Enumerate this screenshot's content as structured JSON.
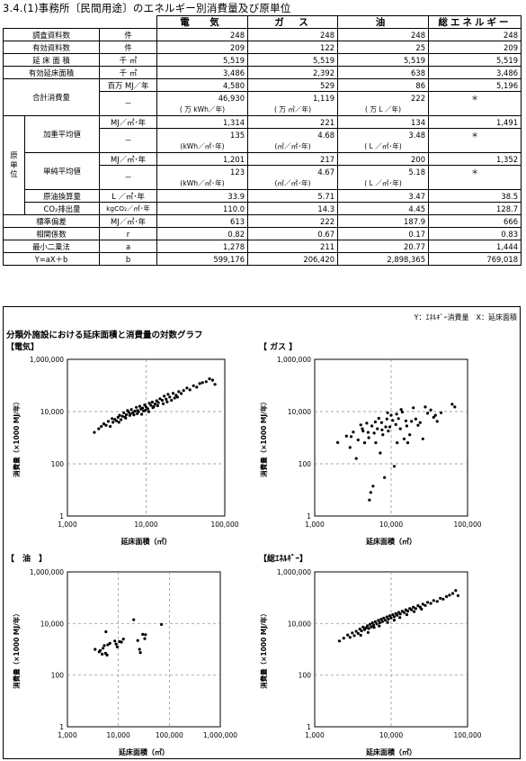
{
  "title": "3.4.(1)事務所〔民間用途〕のエネルギー別消費量及び原単位",
  "table": {
    "headers": [
      "電　気",
      "ガ　ス",
      "油",
      "総エネルギー"
    ],
    "rows": {
      "survey_count": {
        "label": "調査資料数",
        "unit": "件",
        "values": [
          "248",
          "248",
          "248",
          "248"
        ]
      },
      "valid_count": {
        "label": "有効資料数",
        "unit": "件",
        "values": [
          "209",
          "122",
          "25",
          "209"
        ]
      },
      "floor_area": {
        "label": "延 床 面 積",
        "unit": "千 ㎡",
        "values": [
          "5,519",
          "5,519",
          "5,519",
          "5,519"
        ]
      },
      "valid_floor_area": {
        "label": "有効延床面積",
        "unit": "千 ㎡",
        "values": [
          "3,486",
          "2,392",
          "638",
          "3,486"
        ]
      },
      "total_consumption": {
        "label": "合計消費量",
        "unit1": "百万 MJ／年",
        "values1": [
          "4,580",
          "529",
          "86",
          "5,196"
        ],
        "unit2": "－",
        "values2": [
          "46,930",
          "1,119",
          "222",
          "＊"
        ],
        "subs": [
          "( 万 kWh／年)",
          "( 万 ㎥／年)",
          "( 万 L ／年)",
          ""
        ]
      },
      "unit_group_label": "原単位",
      "weighted_avg": {
        "label": "加重平均値",
        "unit1": "MJ／㎡･年",
        "values1": [
          "1,314",
          "221",
          "134",
          "1,491"
        ],
        "unit2": "－",
        "values2": [
          "135",
          "4.68",
          "3.48",
          "＊"
        ],
        "subs": [
          "(kWh／㎡･年)",
          "(㎥／㎡･年)",
          "( L ／㎡･年)",
          ""
        ]
      },
      "simple_avg": {
        "label": "単純平均値",
        "unit1": "MJ／㎡･年",
        "values1": [
          "1,201",
          "217",
          "200",
          "1,352"
        ],
        "unit2": "－",
        "values2": [
          "123",
          "4.67",
          "5.18",
          "＊"
        ],
        "subs": [
          "(kWh／㎡･年)",
          "(㎥／㎡･年)",
          "( L ／㎡･年)",
          ""
        ]
      },
      "crude_oil": {
        "label": "原油換算量",
        "unit": "L ／㎡･年",
        "values": [
          "33.9",
          "5.71",
          "3.47",
          "38.5"
        ]
      },
      "co2": {
        "label": "CO₂排出量",
        "unit": "kgCO₂／㎡･年",
        "values": [
          "110.0",
          "14.3",
          "4.45",
          "128.7"
        ]
      },
      "std_dev": {
        "label": "標準偏差",
        "unit": "MJ／㎡･年",
        "values": [
          "613",
          "222",
          "187.9",
          "666"
        ]
      },
      "correlation": {
        "label": "相関係数",
        "unit": "r",
        "values": [
          "0.82",
          "0.67",
          "0.17",
          "0.83"
        ]
      },
      "least_squares_a": {
        "label": "最小二乗法",
        "unit": "a",
        "values": [
          "1,278",
          "211",
          "20.77",
          "1,444"
        ]
      },
      "least_squares_b": {
        "label": "Y=aX＋b",
        "unit": "b",
        "values": [
          "599,176",
          "206,420",
          "2,898,365",
          "769,018"
        ]
      }
    }
  },
  "axis_legend": "Y：ｴﾈﾙｷﾞｰ消費量　X：延床面積",
  "graphs_title": "分類外施設における延床面積と消費量の対数グラフ",
  "chart_data": [
    {
      "type": "scatter",
      "label": "【電気】",
      "xlabel": "延床面積（㎡）",
      "ylabel": "消費量（×1000 MJ/年）",
      "xscale": "log",
      "yscale": "log",
      "xlim": [
        1000,
        100000
      ],
      "ylim": [
        1,
        1000000
      ],
      "xticks": [
        "1,000",
        "10,000",
        "100,000"
      ],
      "yticks": [
        "1",
        "100",
        "10,000",
        "1,000,000"
      ],
      "grid": true,
      "points": [
        [
          2200,
          1600
        ],
        [
          2500,
          2200
        ],
        [
          2700,
          2700
        ],
        [
          2900,
          3400
        ],
        [
          3100,
          3000
        ],
        [
          3300,
          4200
        ],
        [
          3500,
          2700
        ],
        [
          3700,
          5400
        ],
        [
          3800,
          3900
        ],
        [
          4000,
          5000
        ],
        [
          4200,
          4400
        ],
        [
          4400,
          6000
        ],
        [
          4600,
          7200
        ],
        [
          4800,
          4900
        ],
        [
          5000,
          6600
        ],
        [
          5200,
          9000
        ],
        [
          5400,
          6100
        ],
        [
          5600,
          7600
        ],
        [
          5800,
          11000
        ],
        [
          6000,
          9500
        ],
        [
          6300,
          8100
        ],
        [
          6500,
          12000
        ],
        [
          6800,
          9200
        ],
        [
          7000,
          7500
        ],
        [
          7200,
          10400
        ],
        [
          7500,
          14500
        ],
        [
          7800,
          11000
        ],
        [
          8000,
          9800
        ],
        [
          8300,
          16000
        ],
        [
          8600,
          12500
        ],
        [
          9000,
          13600
        ],
        [
          9300,
          10500
        ],
        [
          9600,
          18000
        ],
        [
          10000,
          15000
        ],
        [
          10500,
          12800
        ],
        [
          11000,
          21000
        ],
        [
          11500,
          17500
        ],
        [
          12000,
          23000
        ],
        [
          12500,
          15500
        ],
        [
          13000,
          19500
        ],
        [
          13600,
          26000
        ],
        [
          14300,
          22000
        ],
        [
          15000,
          31000
        ],
        [
          16000,
          27000
        ],
        [
          17000,
          39000
        ],
        [
          18000,
          30000
        ],
        [
          19000,
          46000
        ],
        [
          20000,
          36000
        ],
        [
          22000,
          50000
        ],
        [
          24000,
          42000
        ],
        [
          26000,
          58000
        ],
        [
          28000,
          49000
        ],
        [
          30000,
          64000
        ],
        [
          33000,
          80000
        ],
        [
          36000,
          68000
        ],
        [
          40000,
          98000
        ],
        [
          44000,
          86000
        ],
        [
          48000,
          118000
        ],
        [
          52000,
          128000
        ],
        [
          58000,
          140000
        ],
        [
          64000,
          180000
        ],
        [
          70000,
          160000
        ],
        [
          75000,
          110000
        ],
        [
          4500,
          3900
        ],
        [
          5500,
          5600
        ],
        [
          6200,
          7100
        ],
        [
          7700,
          8300
        ],
        [
          8800,
          7900
        ],
        [
          9800,
          11200
        ],
        [
          10800,
          9900
        ],
        [
          12200,
          14200
        ],
        [
          14000,
          16700
        ],
        [
          16500,
          20000
        ],
        [
          18500,
          23500
        ],
        [
          21000,
          27000
        ],
        [
          23000,
          33000
        ],
        [
          25000,
          36000
        ]
      ]
    },
    {
      "type": "scatter",
      "label": "【 ガス 】",
      "xlabel": "延床面積（㎡）",
      "ylabel": "消費量（×1000 MJ/年）",
      "xscale": "log",
      "yscale": "log",
      "xlim": [
        1000,
        100000
      ],
      "ylim": [
        1,
        1000000
      ],
      "xticks": [
        "1,000",
        "10,000",
        "100,000"
      ],
      "yticks": [
        "1",
        "100",
        "10,000",
        "1,000,000"
      ],
      "grid": true,
      "points": [
        [
          2000,
          650
        ],
        [
          2600,
          1150
        ],
        [
          2900,
          420
        ],
        [
          3200,
          1650
        ],
        [
          3500,
          160
        ],
        [
          3700,
          820
        ],
        [
          4000,
          3100
        ],
        [
          4200,
          2200
        ],
        [
          4500,
          640
        ],
        [
          4800,
          3600
        ],
        [
          5000,
          1600
        ],
        [
          5200,
          4.1
        ],
        [
          5400,
          8
        ],
        [
          5600,
          2800
        ],
        [
          5800,
          14
        ],
        [
          6000,
          1500
        ],
        [
          6300,
          640
        ],
        [
          6600,
          2200
        ],
        [
          6900,
          5500
        ],
        [
          7200,
          260
        ],
        [
          7500,
          3800
        ],
        [
          7800,
          1300
        ],
        [
          8200,
          30
        ],
        [
          8500,
          2600
        ],
        [
          8800,
          5200
        ],
        [
          9200,
          1800
        ],
        [
          9600,
          2600
        ],
        [
          10000,
          7200
        ],
        [
          10500,
          4600
        ],
        [
          11000,
          80
        ],
        [
          11500,
          3200
        ],
        [
          12000,
          640
        ],
        [
          12500,
          5400
        ],
        [
          13200,
          2200
        ],
        [
          14000,
          9600
        ],
        [
          14800,
          900
        ],
        [
          15600,
          4400
        ],
        [
          16500,
          640
        ],
        [
          17500,
          1300
        ],
        [
          18500,
          4200
        ],
        [
          19500,
          14000
        ],
        [
          21000,
          5200
        ],
        [
          22500,
          3000
        ],
        [
          24000,
          3800
        ],
        [
          26000,
          900
        ],
        [
          28000,
          15000
        ],
        [
          30000,
          8600
        ],
        [
          33000,
          11500
        ],
        [
          36000,
          6000
        ],
        [
          40000,
          4200
        ],
        [
          45000,
          9000
        ],
        [
          63000,
          19000
        ],
        [
          68000,
          15000
        ],
        [
          5100,
          1000
        ],
        [
          6200,
          4000
        ],
        [
          7600,
          2000
        ],
        [
          9000,
          9000
        ],
        [
          11800,
          8000
        ],
        [
          13500,
          12000
        ],
        [
          16000,
          2800
        ],
        [
          38000,
          7200
        ],
        [
          3000,
          1100
        ],
        [
          4300,
          1800
        ]
      ]
    },
    {
      "type": "scatter",
      "label": "【　油　】",
      "xlabel": "延床面積（㎡）",
      "ylabel": "消費量（×1000 MJ/年）",
      "xscale": "log",
      "yscale": "log",
      "xlim": [
        1000,
        1000000
      ],
      "ylim": [
        1,
        1000000
      ],
      "xticks": [
        "1,000",
        "10,000",
        "100,000",
        "1,000,000"
      ],
      "yticks": [
        "1",
        "100",
        "10,000",
        "1,000,000"
      ],
      "grid": true,
      "points": [
        [
          3500,
          1000
        ],
        [
          4200,
          800
        ],
        [
          4800,
          650
        ],
        [
          5300,
          1400
        ],
        [
          5700,
          4800
        ],
        [
          6200,
          1500
        ],
        [
          8500,
          2100
        ],
        [
          9500,
          1250
        ],
        [
          11500,
          1900
        ],
        [
          20000,
          14000
        ],
        [
          24000,
          2200
        ],
        [
          27000,
          750
        ],
        [
          30000,
          3800
        ],
        [
          34000,
          3700
        ],
        [
          70000,
          9200
        ],
        [
          6800,
          1700
        ],
        [
          12500,
          2500
        ],
        [
          4400,
          900
        ],
        [
          5000,
          1100
        ],
        [
          9000,
          1600
        ],
        [
          26000,
          1000
        ],
        [
          33000,
          2600
        ],
        [
          6000,
          600
        ],
        [
          5600,
          700
        ],
        [
          10500,
          2000
        ]
      ]
    },
    {
      "type": "scatter",
      "label": "【総ｴﾈﾙｷﾞｰ】",
      "xlabel": "延床面積（㎡）",
      "ylabel": "消費量（×1000 MJ/年）",
      "xscale": "log",
      "yscale": "log",
      "xlim": [
        1000,
        100000
      ],
      "ylim": [
        1,
        1000000
      ],
      "xticks": [
        "1,000",
        "10,000",
        "100,000"
      ],
      "yticks": [
        "1",
        "100",
        "10,000",
        "1,000,000"
      ],
      "grid": true,
      "points": [
        [
          2100,
          2100
        ],
        [
          2400,
          2700
        ],
        [
          2700,
          3600
        ],
        [
          2900,
          2900
        ],
        [
          3100,
          4300
        ],
        [
          3300,
          3400
        ],
        [
          3500,
          5000
        ],
        [
          3700,
          4100
        ],
        [
          3900,
          6100
        ],
        [
          4100,
          5200
        ],
        [
          4300,
          7200
        ],
        [
          4500,
          5800
        ],
        [
          4700,
          6800
        ],
        [
          4900,
          8200
        ],
        [
          5100,
          6400
        ],
        [
          5300,
          9300
        ],
        [
          5500,
          7400
        ],
        [
          5700,
          10600
        ],
        [
          5900,
          8500
        ],
        [
          6200,
          11800
        ],
        [
          6500,
          9600
        ],
        [
          6800,
          13200
        ],
        [
          7100,
          10800
        ],
        [
          7400,
          14600
        ],
        [
          7700,
          12000
        ],
        [
          8000,
          16200
        ],
        [
          8400,
          13400
        ],
        [
          8800,
          18000
        ],
        [
          9200,
          14800
        ],
        [
          9600,
          20000
        ],
        [
          10000,
          16500
        ],
        [
          10500,
          22000
        ],
        [
          11000,
          18500
        ],
        [
          11500,
          24500
        ],
        [
          12000,
          21000
        ],
        [
          12600,
          27000
        ],
        [
          13200,
          23500
        ],
        [
          14000,
          30000
        ],
        [
          14800,
          26500
        ],
        [
          15600,
          34000
        ],
        [
          16500,
          30000
        ],
        [
          17500,
          38000
        ],
        [
          18500,
          34000
        ],
        [
          19500,
          43000
        ],
        [
          21000,
          38000
        ],
        [
          22500,
          49000
        ],
        [
          24000,
          43000
        ],
        [
          26000,
          56000
        ],
        [
          28000,
          50000
        ],
        [
          30000,
          66000
        ],
        [
          33000,
          60000
        ],
        [
          36000,
          78000
        ],
        [
          40000,
          72000
        ],
        [
          44000,
          95000
        ],
        [
          48000,
          88000
        ],
        [
          53000,
          110000
        ],
        [
          58000,
          125000
        ],
        [
          64000,
          145000
        ],
        [
          70000,
          190000
        ],
        [
          75000,
          120000
        ],
        [
          4000,
          3500
        ],
        [
          5000,
          4500
        ],
        [
          6000,
          7000
        ],
        [
          7000,
          8000
        ],
        [
          9000,
          11000
        ],
        [
          11000,
          13500
        ],
        [
          13000,
          17000
        ],
        [
          16000,
          22000
        ],
        [
          20000,
          29000
        ],
        [
          25000,
          36000
        ]
      ]
    }
  ]
}
